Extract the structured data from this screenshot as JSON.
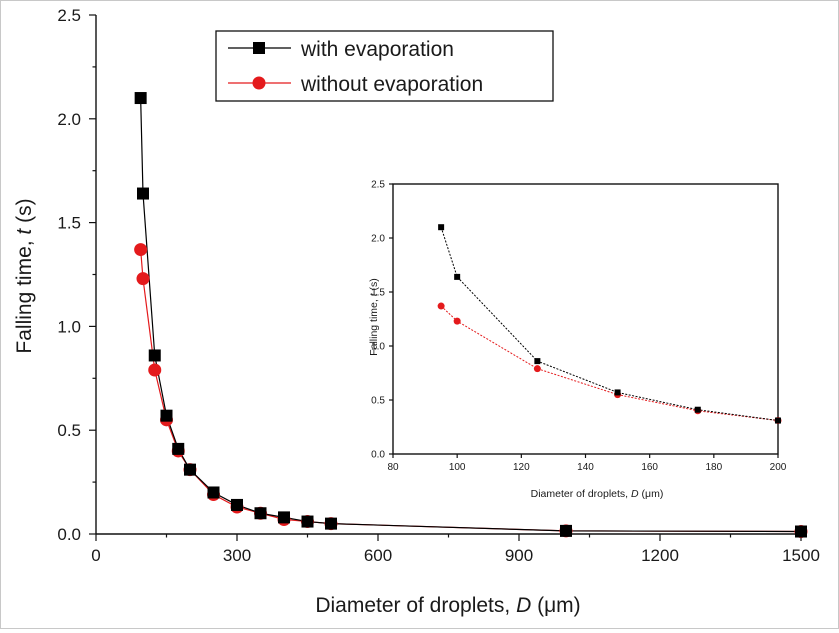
{
  "chart_data": [
    {
      "type": "line",
      "role": "main",
      "xlabel": "Diameter of droplets, ",
      "xlabel_var": "D",
      "xlabel_unit": " (μm)",
      "ylabel": "Falling time, ",
      "ylabel_var": "t",
      "ylabel_unit": " (s)",
      "xlim": [
        0,
        1500
      ],
      "ylim": [
        0,
        2.5
      ],
      "xticks": [
        0,
        300,
        600,
        900,
        1200,
        1500
      ],
      "xtick_labels": [
        "0",
        "300",
        "600",
        "900",
        "1200",
        "1500"
      ],
      "yticks": [
        0,
        0.5,
        1.0,
        1.5,
        2.0,
        2.5
      ],
      "ytick_labels": [
        "0.0",
        "0.5",
        "1.0",
        "1.5",
        "2.0",
        "2.5"
      ],
      "grid": false,
      "legend_position": "top-center",
      "series": [
        {
          "name": "with evaporation",
          "color": "#000000",
          "marker": "square",
          "x": [
            95,
            100,
            125,
            150,
            175,
            200,
            250,
            300,
            350,
            400,
            450,
            500,
            1000,
            1500
          ],
          "y": [
            2.1,
            1.64,
            0.86,
            0.57,
            0.41,
            0.31,
            0.2,
            0.14,
            0.1,
            0.08,
            0.06,
            0.05,
            0.015,
            0.012
          ]
        },
        {
          "name": "without evaporation",
          "color": "#e41a1c",
          "marker": "circle",
          "x": [
            95,
            100,
            125,
            150,
            175,
            200,
            250,
            300,
            350,
            400,
            450,
            500,
            1000,
            1500
          ],
          "y": [
            1.37,
            1.23,
            0.79,
            0.55,
            0.4,
            0.31,
            0.19,
            0.13,
            0.1,
            0.07,
            0.06,
            0.05,
            0.015,
            0.012
          ]
        }
      ]
    },
    {
      "type": "line",
      "role": "inset",
      "xlabel": "Diameter of droplets, ",
      "xlabel_var": "D",
      "xlabel_unit": " (μm)",
      "ylabel": "Falling time, ",
      "ylabel_var": "t",
      "ylabel_unit": " (s)",
      "xlim": [
        80,
        200
      ],
      "ylim": [
        0,
        2.5
      ],
      "xticks": [
        80,
        100,
        120,
        140,
        160,
        180,
        200
      ],
      "xtick_labels": [
        "80",
        "100",
        "120",
        "140",
        "160",
        "180",
        "200"
      ],
      "yticks": [
        0,
        0.5,
        1.0,
        1.5,
        2.0,
        2.5
      ],
      "ytick_labels": [
        "0.0",
        "0.5",
        "1.0",
        "1.5",
        "2.0",
        "2.5"
      ],
      "grid": false,
      "series": [
        {
          "name": "with evaporation",
          "color": "#000000",
          "marker": "square",
          "x": [
            95,
            100,
            125,
            150,
            175,
            200
          ],
          "y": [
            2.1,
            1.64,
            0.86,
            0.57,
            0.41,
            0.31
          ]
        },
        {
          "name": "without evaporation",
          "color": "#e41a1c",
          "marker": "circle",
          "x": [
            95,
            100,
            125,
            150,
            175,
            200
          ],
          "y": [
            1.37,
            1.23,
            0.79,
            0.55,
            0.4,
            0.31
          ]
        }
      ]
    }
  ]
}
